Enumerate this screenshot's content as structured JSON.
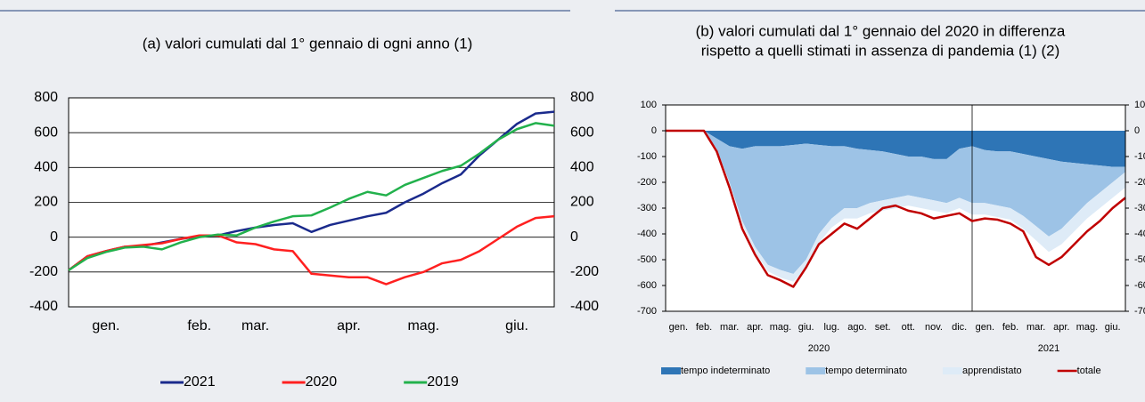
{
  "chart_data": [
    {
      "type": "line",
      "title": [
        "(a) valori cumulati dal 1° gennaio di ogni anno (1)"
      ],
      "categories": [
        null,
        null,
        "gen.",
        null,
        null,
        null,
        null,
        "feb.",
        null,
        null,
        "mar.",
        null,
        null,
        null,
        null,
        "apr.",
        null,
        null,
        null,
        "mag.",
        null,
        null,
        null,
        null,
        "giu.",
        null,
        null
      ],
      "series": [
        {
          "name": "2021",
          "color": "#1a2a8c",
          "values": [
            -190,
            -110,
            -80,
            -55,
            -50,
            -30,
            -10,
            5,
            10,
            35,
            55,
            70,
            80,
            30,
            70,
            95,
            120,
            140,
            200,
            250,
            310,
            360,
            470,
            560,
            650,
            710,
            720
          ]
        },
        {
          "name": "2020",
          "color": "#ff2020",
          "values": [
            -190,
            -110,
            -80,
            -55,
            -45,
            -35,
            -10,
            10,
            10,
            -30,
            -40,
            -70,
            -80,
            -210,
            -220,
            -230,
            -230,
            -270,
            -230,
            -200,
            -150,
            -130,
            -80,
            -10,
            60,
            110,
            120
          ]
        },
        {
          "name": "2019",
          "color": "#22b14c",
          "values": [
            -190,
            -120,
            -85,
            -60,
            -55,
            -70,
            -30,
            0,
            15,
            10,
            55,
            90,
            120,
            125,
            170,
            220,
            260,
            240,
            300,
            340,
            380,
            410,
            480,
            560,
            620,
            655,
            640
          ]
        }
      ],
      "ylim": [
        -400,
        800
      ],
      "yticks": [
        -400,
        -200,
        0,
        200,
        400,
        600,
        800
      ],
      "grid": true,
      "legend": "bottom"
    },
    {
      "type": "area",
      "title": [
        "(b) valori cumulati dal 1° gennaio del 2020 in differenza",
        "rispetto a quelli stimati in assenza di pandemia (1) (2)"
      ],
      "x": [
        0,
        0.5,
        1,
        1.5,
        2,
        2.5,
        3,
        3.5,
        4,
        4.5,
        5,
        5.5,
        6,
        6.5,
        7,
        7.5,
        8,
        8.5,
        9,
        9.5,
        10,
        10.5,
        11,
        11.5,
        12,
        12.5,
        13,
        13.5,
        14,
        14.5,
        15,
        15.5,
        16,
        16.5,
        17,
        17.5,
        18
      ],
      "xlim": [
        0,
        18
      ],
      "xticks": [
        {
          "value": 0.5,
          "label": "gen."
        },
        {
          "value": 1.5,
          "label": "feb."
        },
        {
          "value": 2.5,
          "label": "mar."
        },
        {
          "value": 3.5,
          "label": "apr."
        },
        {
          "value": 4.5,
          "label": "mag."
        },
        {
          "value": 5.5,
          "label": "giu."
        },
        {
          "value": 6.5,
          "label": "lug."
        },
        {
          "value": 7.5,
          "label": "ago."
        },
        {
          "value": 8.5,
          "label": "set."
        },
        {
          "value": 9.5,
          "label": "ott."
        },
        {
          "value": 10.5,
          "label": "nov."
        },
        {
          "value": 11.5,
          "label": "dic."
        },
        {
          "value": 12.5,
          "label": "gen."
        },
        {
          "value": 13.5,
          "label": "feb."
        },
        {
          "value": 14.5,
          "label": "mar."
        },
        {
          "value": 15.5,
          "label": "apr."
        },
        {
          "value": 16.5,
          "label": "mag."
        },
        {
          "value": 17.5,
          "label": "giu."
        }
      ],
      "year_ticks": [
        {
          "value": 6,
          "label": "2020"
        },
        {
          "value": 15,
          "label": "2021"
        }
      ],
      "vlines": [
        12
      ],
      "series": [
        {
          "name": "tempo indeterminato",
          "color": "#2e75b6",
          "kind": "area",
          "values": [
            0,
            0,
            0,
            0,
            -30,
            -60,
            -70,
            -60,
            -60,
            -60,
            -55,
            -50,
            -55,
            -60,
            -60,
            -70,
            -75,
            -80,
            -90,
            -100,
            -100,
            -110,
            -110,
            -70,
            -60,
            -75,
            -80,
            -80,
            -90,
            -100,
            -110,
            -120,
            -125,
            -130,
            -135,
            -140,
            -140
          ]
        },
        {
          "name": "tempo determinato",
          "color": "#9dc3e6",
          "kind": "area",
          "values": [
            0,
            0,
            0,
            0,
            -40,
            -140,
            -280,
            -390,
            -460,
            -480,
            -500,
            -450,
            -345,
            -280,
            -240,
            -230,
            -205,
            -190,
            -170,
            -150,
            -160,
            -160,
            -170,
            -190,
            -220,
            -205,
            -210,
            -220,
            -240,
            -270,
            -300,
            -260,
            -205,
            -150,
            -105,
            -60,
            -20
          ]
        },
        {
          "name": "apprendistato",
          "color": "#deebf7",
          "kind": "area",
          "values": [
            0,
            0,
            0,
            0,
            -5,
            -10,
            -15,
            -20,
            -25,
            -30,
            -30,
            -35,
            -35,
            -35,
            -40,
            -40,
            -40,
            -40,
            -40,
            -40,
            -40,
            -40,
            -40,
            -40,
            -45,
            -45,
            -45,
            -45,
            -50,
            -55,
            -60,
            -60,
            -60,
            -60,
            -60,
            -60,
            -60
          ]
        },
        {
          "name": "totale",
          "color": "#c00000",
          "kind": "line",
          "values": [
            0,
            0,
            0,
            0,
            -80,
            -220,
            -380,
            -480,
            -560,
            -580,
            -605,
            -530,
            -440,
            -400,
            -360,
            -380,
            -340,
            -300,
            -290,
            -310,
            -320,
            -340,
            -330,
            -320,
            -350,
            -340,
            -345,
            -360,
            -390,
            -490,
            -520,
            -490,
            -440,
            -390,
            -350,
            -300,
            -260
          ]
        }
      ],
      "ylim": [
        -700,
        100
      ],
      "yticks": [
        -700,
        -600,
        -500,
        -400,
        -300,
        -200,
        -100,
        0,
        100
      ],
      "grid": false,
      "legend": "bottom"
    }
  ]
}
